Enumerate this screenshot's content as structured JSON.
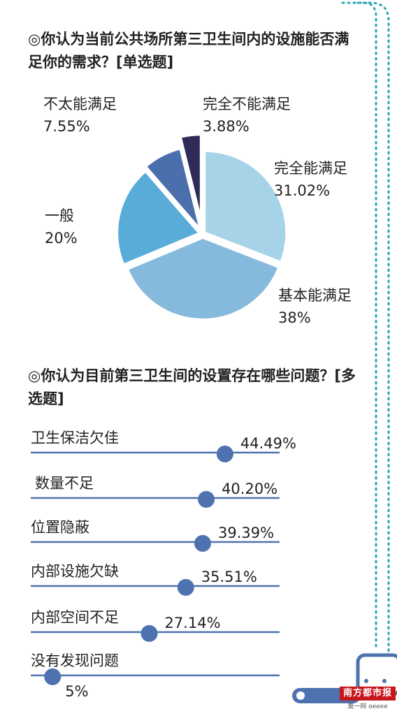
{
  "questions": {
    "q1": "◎你认为当前公共场所第三卫生间内的设施能否满足你的需求？[单选题]",
    "q2": "◎你认为目前第三卫生间的设置存在哪些问题？[多选题]"
  },
  "chart_data": [
    {
      "type": "pie",
      "title": "◎你认为当前公共场所第三卫生间内的设施能否满足你的需求？[单选题]",
      "slices": [
        {
          "label": "完全能满足",
          "value": 31.02,
          "display": "31.02%",
          "color": "#a7d3e8"
        },
        {
          "label": "基本能满足",
          "value": 38,
          "display": "38%",
          "color": "#86badc"
        },
        {
          "label": "一般",
          "value": 20,
          "display": "20%",
          "color": "#59acd8"
        },
        {
          "label": "不太能满足",
          "value": 7.55,
          "display": "7.55%",
          "color": "#4b6fac"
        },
        {
          "label": "完全不能满足",
          "value": 3.88,
          "display": "3.88%",
          "color": "#2f2a58"
        }
      ]
    },
    {
      "type": "bar",
      "orientation": "horizontal",
      "title": "◎你认为目前第三卫生间的设置存在哪些问题？[多选题]",
      "categories": [
        "卫生保洁欠佳",
        "数量不足",
        "位置隐蔽",
        "内部设施欠缺",
        "内部空间不足",
        "没有发现问题"
      ],
      "values": [
        44.49,
        40.2,
        39.39,
        35.51,
        27.14,
        5
      ],
      "display": [
        "44.49%",
        "40.20%",
        "39.39%",
        "35.51%",
        "27.14%",
        "5%"
      ],
      "xlim": [
        0,
        57
      ],
      "color": "#4e72b0"
    }
  ],
  "brand": {
    "name": "南方都市报",
    "sub": "奥一网 oeeee"
  },
  "colors": {
    "accent": "#4e72b0",
    "dots": "#2aa6b5",
    "brand": "#c8161d"
  }
}
